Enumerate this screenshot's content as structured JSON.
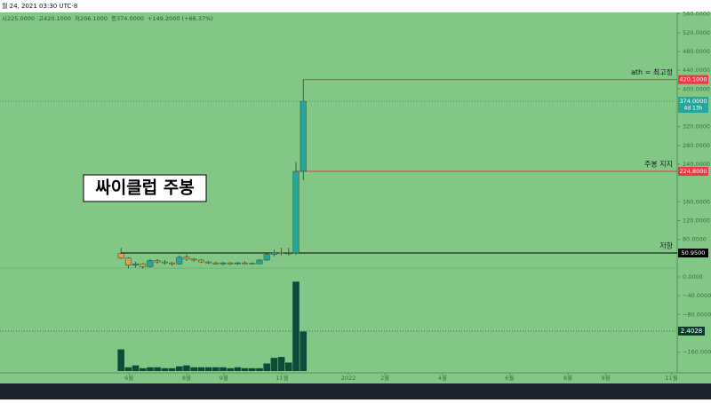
{
  "chart_data": {
    "type": "candlestick",
    "header": "월 24, 2021 03:30 UTC-8",
    "ohlc_text": [
      "시225.0000",
      "고420.1000",
      "저206.1000",
      "종374.0000",
      "+149.2000 (+66.37%)"
    ],
    "annotation": "싸이클럽 주봉",
    "xlim": [
      -16.6,
      76.3
    ],
    "xticks": [
      {
        "value": 1.1,
        "label": "6월"
      },
      {
        "value": 9.0,
        "label": "8월"
      },
      {
        "value": 14.1,
        "label": "9월"
      },
      {
        "value": 22.1,
        "label": "11월"
      },
      {
        "value": 31.2,
        "label": "2022"
      },
      {
        "value": 36.2,
        "label": "2월"
      },
      {
        "value": 44.1,
        "label": "4월"
      },
      {
        "value": 53.3,
        "label": "6월"
      },
      {
        "value": 61.3,
        "label": "8월"
      },
      {
        "value": 66.5,
        "label": "9월"
      },
      {
        "value": 75.5,
        "label": "11월"
      }
    ],
    "ylim": [
      -204,
      563
    ],
    "yticks": [
      {
        "value": 560,
        "label": "560.0000"
      },
      {
        "value": 520,
        "label": "520.0000"
      },
      {
        "value": 480,
        "label": "480.0000"
      },
      {
        "value": 440,
        "label": "440.0000"
      },
      {
        "value": 400,
        "label": "400.0000"
      },
      {
        "value": 320,
        "label": "320.0000"
      },
      {
        "value": 280,
        "label": "280.0000"
      },
      {
        "value": 240,
        "label": "240.0000"
      },
      {
        "value": 160,
        "label": "160.0000"
      },
      {
        "value": 120,
        "label": "120.0000"
      },
      {
        "value": 80,
        "label": "80.0000"
      },
      {
        "value": 0,
        "label": "0.0000"
      },
      {
        "value": -40,
        "label": "−40.0000"
      },
      {
        "value": -80,
        "label": "−80.0000"
      },
      {
        "value": -160,
        "label": "−160.0000"
      }
    ],
    "open": [
      50,
      40,
      25,
      28,
      22,
      35,
      32,
      30,
      28,
      42,
      38,
      36,
      32,
      30,
      28,
      30,
      28,
      30,
      29,
      28,
      36,
      48,
      52,
      50,
      51,
      225
    ],
    "close": [
      40,
      25,
      28,
      22,
      35,
      32,
      30,
      28,
      42,
      38,
      36,
      32,
      30,
      28,
      30,
      28,
      30,
      29,
      28,
      36,
      48,
      52,
      50,
      51,
      224.8,
      374
    ],
    "high": [
      62,
      42,
      32,
      30,
      38,
      38,
      36,
      32,
      46,
      48,
      40,
      38,
      34,
      32,
      32,
      32,
      32,
      33,
      31,
      38,
      50,
      58,
      62,
      62,
      245,
      420.1
    ],
    "low": [
      38,
      18,
      20,
      18,
      20,
      28,
      26,
      24,
      26,
      34,
      32,
      30,
      28,
      26,
      25,
      26,
      26,
      27,
      26,
      27,
      34,
      44,
      46,
      46,
      47,
      206.1
    ],
    "volume": [
      23,
      4,
      6,
      3,
      4,
      4,
      3,
      3,
      5,
      6,
      4,
      4,
      4,
      4,
      4,
      3,
      4,
      3,
      3,
      3,
      8,
      14,
      15,
      9,
      95,
      42
    ],
    "volume_ylim": [
      0,
      100
    ],
    "up_color": "#26a69a",
    "down_color": "#e0a050",
    "volume_color": "#0b4d3a",
    "levels": [
      {
        "name": "ath = 최고정",
        "value": 420.1,
        "value_label": "420.1000",
        "color": "#f23645",
        "from": 25
      },
      {
        "name": "주봉 지지",
        "value": 224.8,
        "value_label": "224.8000",
        "color": "#f23645",
        "from": 24
      },
      {
        "name": "저항",
        "value": 50.95,
        "value_label": "50.9500",
        "color": "#000000",
        "from": 0
      }
    ],
    "last_price": {
      "value": 374,
      "value_label": "374.0000",
      "countdown": "4d 13h"
    },
    "indicator_label": "2.4028"
  }
}
